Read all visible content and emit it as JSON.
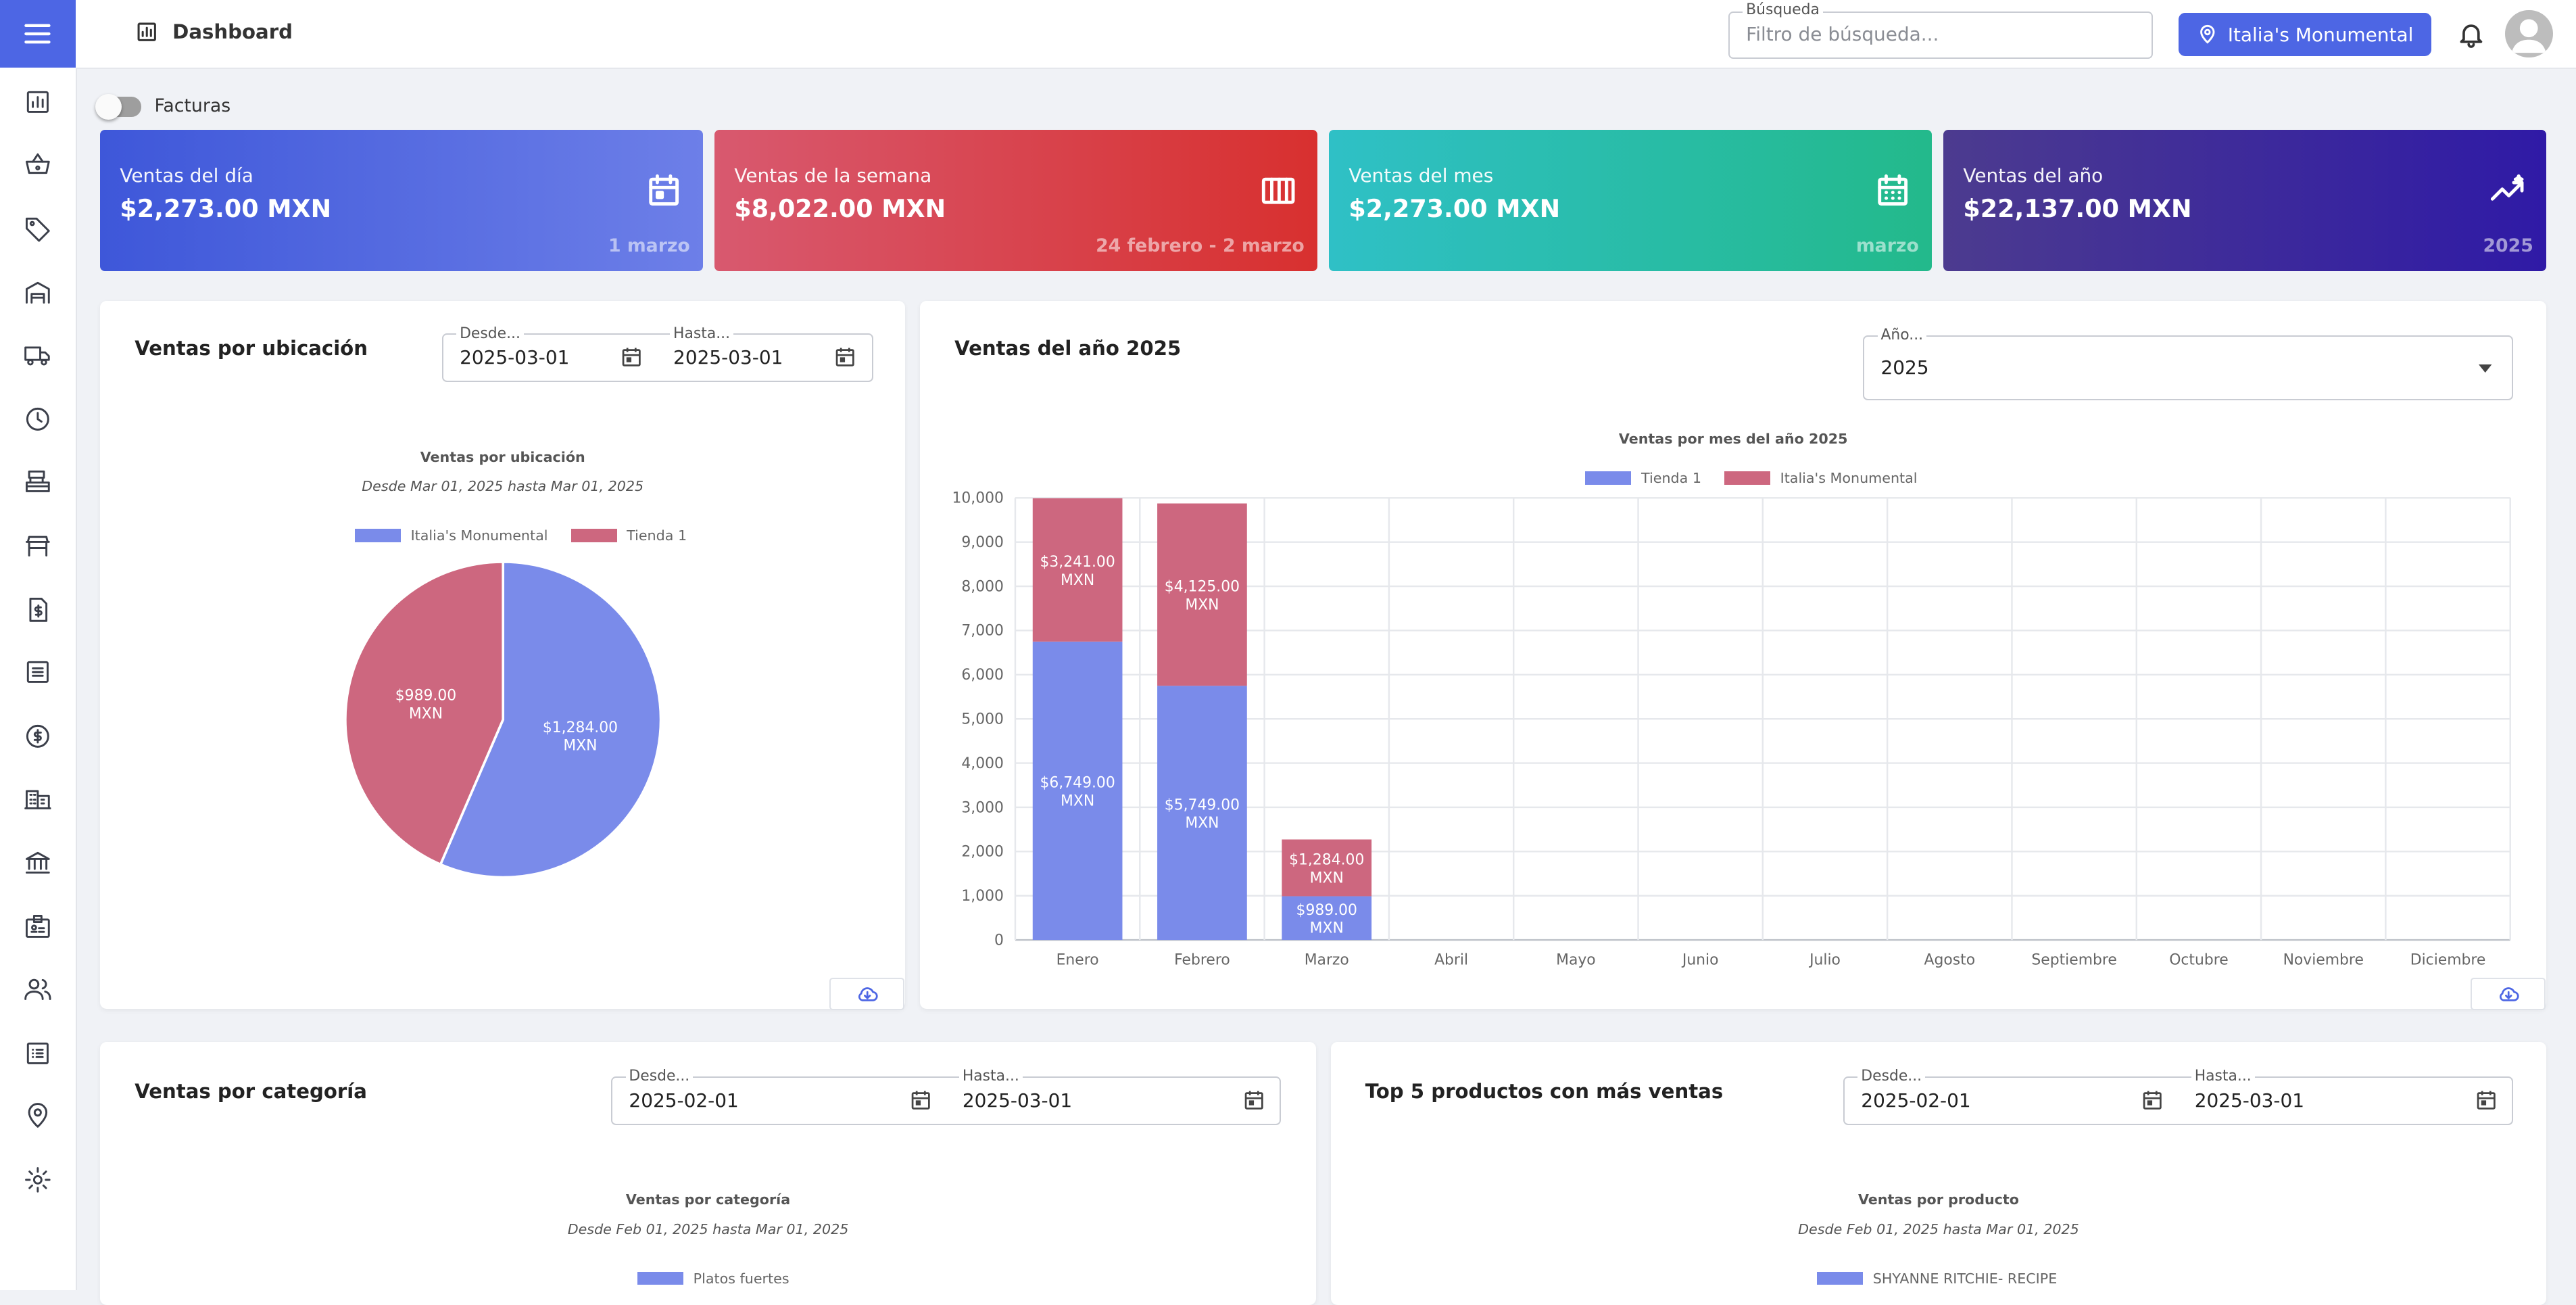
{
  "header": {
    "page_title": "Dashboard",
    "search_label": "Búsqueda",
    "search_placeholder": "Filtro de búsqueda...",
    "search_value": "",
    "location_label": "Italia's Monumental"
  },
  "sidebar": {
    "icons": [
      "dashboard-icon",
      "basket-icon",
      "tag-icon",
      "warehouse-icon",
      "truck-icon",
      "clock-icon",
      "cash-register-icon",
      "store-icon",
      "invoice-dollar-icon",
      "list-icon",
      "dollar-circle-icon",
      "building-icon",
      "bank-icon",
      "id-badge-icon",
      "users-icon",
      "checklist-icon",
      "location-pin-icon",
      "settings-icon"
    ]
  },
  "toggle": {
    "label": "Facturas",
    "checked": false
  },
  "stats": [
    {
      "title": "Ventas del día",
      "value": "$2,273.00 MXN",
      "period": "1 marzo",
      "icon": "calendar-icon",
      "color_start": "#3e57d9",
      "color_end": "#6d7fe8"
    },
    {
      "title": "Ventas de la semana",
      "value": "$8,022.00 MXN",
      "period": "24 febrero - 2 marzo",
      "icon": "view-week-icon",
      "color_start": "#d8596f",
      "color_end": "#d8302f"
    },
    {
      "title": "Ventas del mes",
      "value": "$2,273.00 MXN",
      "period": "marzo",
      "icon": "calendar-month-icon",
      "color_start": "#2fc0c6",
      "color_end": "#23b98b"
    },
    {
      "title": "Ventas del año",
      "value": "$22,137.00 MXN",
      "period": "2025",
      "icon": "trending-icon",
      "color_start": "#4c3b8f",
      "color_end": "#2f1aa6"
    }
  ],
  "panel_location": {
    "title": "Ventas por ubicación",
    "from_label": "Desde...",
    "from_value": "2025-03-01",
    "to_label": "Hasta...",
    "to_value": "2025-03-01",
    "chart_title": "Ventas por ubicación",
    "chart_subtitle": "Desde Mar 01, 2025 hasta Mar 01, 2025",
    "value_suffix": "MXN"
  },
  "panel_year": {
    "title": "Ventas del año 2025",
    "year_label": "Año...",
    "year_value": "2025",
    "chart_title": "Ventas por mes del año 2025",
    "value_suffix": "MXN"
  },
  "panel_category": {
    "title": "Ventas por categoría",
    "from_label": "Desde...",
    "from_value": "2025-02-01",
    "to_label": "Hasta...",
    "to_value": "2025-03-01",
    "chart_title": "Ventas por categoría",
    "chart_subtitle": "Desde Feb 01, 2025 hasta Mar 01, 2025",
    "legend_label": "Platos fuertes"
  },
  "panel_products": {
    "title": "Top 5 productos con más ventas",
    "from_label": "Desde...",
    "from_value": "2025-02-01",
    "to_label": "Hasta...",
    "to_value": "2025-03-01",
    "chart_title": "Ventas por producto",
    "chart_subtitle": "Desde Feb 01, 2025 hasta Mar 01, 2025",
    "legend_label": "SHYANNE RITCHIE- RECIPE"
  },
  "colors": {
    "accent": "#4d66e4",
    "series_blue": "#7a8bea",
    "series_red": "#cd677f"
  },
  "chart_data": [
    {
      "type": "pie",
      "title": "Ventas por ubicación",
      "subtitle": "Desde Mar 01, 2025 hasta Mar 01, 2025",
      "legend_position": "top",
      "slices": [
        {
          "name": "Italia's Monumental",
          "value": 1284.0,
          "label": "$1,284.00",
          "color": "#7a8bea"
        },
        {
          "name": "Tienda 1",
          "value": 989.0,
          "label": "$989.00",
          "color": "#cd677f"
        }
      ]
    },
    {
      "type": "bar",
      "stacked": true,
      "title": "Ventas por mes del año 2025",
      "legend_position": "top",
      "grid": true,
      "categories": [
        "Enero",
        "Febrero",
        "Marzo",
        "Abril",
        "Mayo",
        "Junio",
        "Julio",
        "Agosto",
        "Septiembre",
        "Octubre",
        "Noviembre",
        "Diciembre"
      ],
      "ylim": [
        0,
        10000
      ],
      "yticks": [
        0,
        1000,
        2000,
        3000,
        4000,
        5000,
        6000,
        7000,
        8000,
        9000,
        10000
      ],
      "ytick_labels": [
        "0",
        "1,000",
        "2,000",
        "3,000",
        "4,000",
        "5,000",
        "6,000",
        "7,000",
        "8,000",
        "9,000",
        "10,000"
      ],
      "series": [
        {
          "name": "Tienda 1",
          "color": "#7a8bea",
          "values": [
            6749,
            5749,
            989,
            0,
            0,
            0,
            0,
            0,
            0,
            0,
            0,
            0
          ],
          "labels": [
            "$6,749.00",
            "$5,749.00",
            "$989.00",
            "",
            "",
            "",
            "",
            "",
            "",
            "",
            "",
            ""
          ]
        },
        {
          "name": "Italia's Monumental",
          "color": "#cd677f",
          "values": [
            3241,
            4125,
            1284,
            0,
            0,
            0,
            0,
            0,
            0,
            0,
            0,
            0
          ],
          "labels": [
            "$3,241.00",
            "$4,125.00",
            "$1,284.00",
            "",
            "",
            "",
            "",
            "",
            "",
            "",
            "",
            ""
          ]
        }
      ]
    }
  ]
}
